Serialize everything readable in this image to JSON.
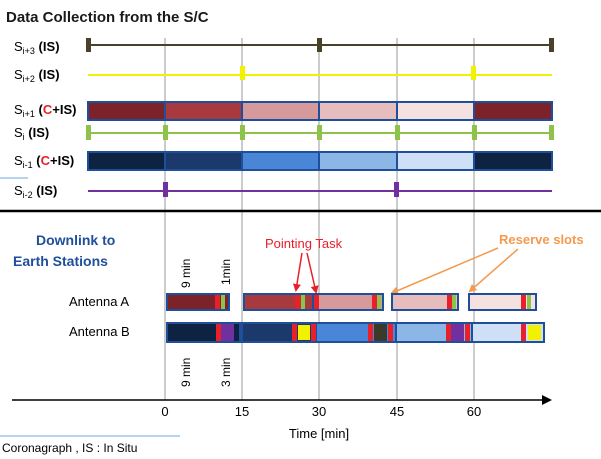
{
  "title": "Data Collection from the S/C",
  "spacecraft": [
    {
      "base": "S",
      "sub": "i+3",
      "paren_open": " (",
      "c": "",
      "plus": "",
      "is": "IS",
      "paren_close": ")"
    },
    {
      "base": "S",
      "sub": "i+2",
      "paren_open": " (",
      "c": "",
      "plus": "",
      "is": "IS",
      "paren_close": ")"
    },
    {
      "base": "S",
      "sub": "i+1",
      "paren_open": " (",
      "c": "C",
      "plus": "+",
      "is": "IS",
      "paren_close": ")"
    },
    {
      "base": "S",
      "sub": "i",
      "paren_open": " (",
      "c": "",
      "plus": "",
      "is": "IS",
      "paren_close": ")"
    },
    {
      "base": "S",
      "sub": "i-1",
      "paren_open": " (",
      "c": "C",
      "plus": "+",
      "is": "IS",
      "paren_close": ")"
    },
    {
      "base": "S",
      "sub": "i-2",
      "paren_open": " (",
      "c": "",
      "plus": "",
      "is": "IS",
      "paren_close": ")"
    }
  ],
  "downlink_title_line1": "Downlink to",
  "downlink_title_line2": "Earth Stations",
  "antenna_a": "Antenna A",
  "antenna_b": "Antenna B",
  "annotation_9min_top": "9 min",
  "annotation_1min": "1min",
  "annotation_9min_bottom": "9 min",
  "annotation_3min": "3 min",
  "pointing_task": "Pointing Task",
  "reserve_slots": "Reserve slots",
  "time_ticks": [
    "0",
    "15",
    "30",
    "45",
    "60"
  ],
  "time_axis_label": "Time [min]",
  "legend_text": "Coronagraph , IS : In Situ",
  "colors": {
    "title_blue": "#1f4e9a",
    "red_text": "#e8202a",
    "orange": "#f59a4c",
    "olive_dark": "#4a4228",
    "yellow": "#f2f200",
    "green": "#8fc24a",
    "purple": "#7030a0"
  }
}
